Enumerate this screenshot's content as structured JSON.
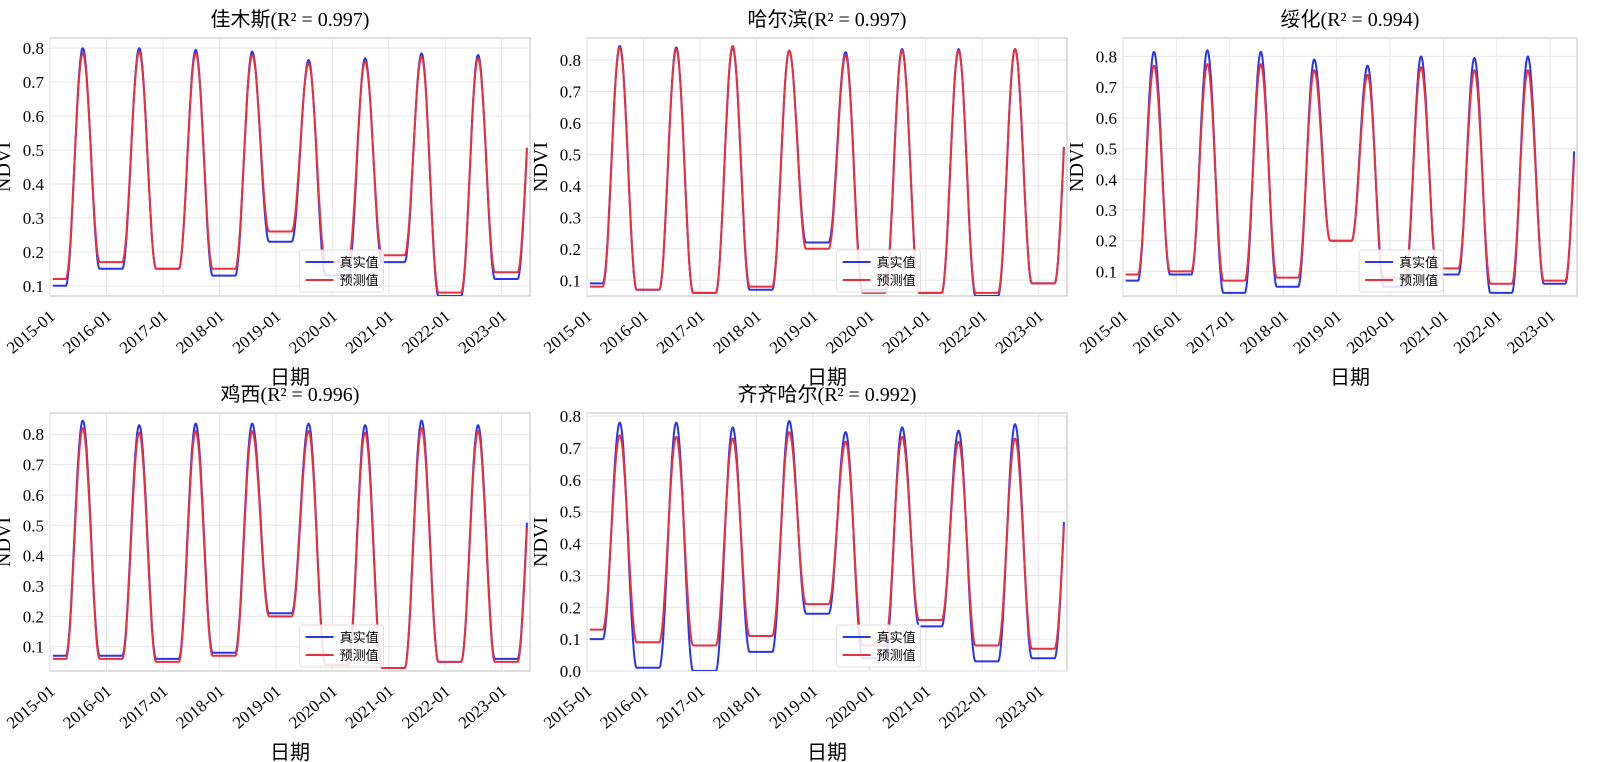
{
  "colors": {
    "true": "#2b35e8",
    "pred": "#e8303f",
    "grid": "#e6e6e6",
    "frame": "#c8c8c8"
  },
  "x_tick_labels": [
    "2015-01",
    "2016-01",
    "2017-01",
    "2018-01",
    "2019-01",
    "2020-01",
    "2021-01",
    "2022-01",
    "2023-01"
  ],
  "chart_data": [
    {
      "type": "line",
      "title": "佳木斯(R² = 0.997)",
      "xlabel": "日期",
      "ylabel": "NDVI",
      "xlim": [
        2015.0,
        2023.5
      ],
      "ylim": [
        0.07,
        0.83
      ],
      "yticks": [
        0.1,
        0.2,
        0.3,
        0.4,
        0.5,
        0.6,
        0.7,
        0.8
      ],
      "legend_position": "lower-right",
      "peaks_true": [
        0.8,
        0.8,
        0.795,
        0.79,
        0.765,
        0.77,
        0.785,
        0.78
      ],
      "troughs_true": [
        0.1,
        0.15,
        0.15,
        0.13,
        0.23,
        0.13,
        0.17,
        0.07,
        0.12
      ],
      "peaks_pred": [
        0.785,
        0.79,
        0.785,
        0.78,
        0.755,
        0.76,
        0.775,
        0.77
      ],
      "troughs_pred": [
        0.12,
        0.17,
        0.15,
        0.15,
        0.26,
        0.17,
        0.19,
        0.08,
        0.14
      ],
      "series": [
        {
          "name": "真实值"
        },
        {
          "name": "预测值"
        }
      ]
    },
    {
      "type": "line",
      "title": "哈尔滨(R² = 0.997)",
      "xlabel": "日期",
      "ylabel": "NDVI",
      "xlim": [
        2015.0,
        2023.5
      ],
      "ylim": [
        0.05,
        0.87
      ],
      "yticks": [
        0.1,
        0.2,
        0.3,
        0.4,
        0.5,
        0.6,
        0.7,
        0.8
      ],
      "legend_position": "lower-right",
      "peaks_true": [
        0.845,
        0.84,
        0.84,
        0.83,
        0.825,
        0.835,
        0.835,
        0.835
      ],
      "troughs_true": [
        0.09,
        0.07,
        0.06,
        0.07,
        0.22,
        0.07,
        0.06,
        0.05,
        0.09
      ],
      "peaks_pred": [
        0.84,
        0.835,
        0.845,
        0.83,
        0.815,
        0.83,
        0.83,
        0.835
      ],
      "troughs_pred": [
        0.08,
        0.07,
        0.06,
        0.08,
        0.2,
        0.06,
        0.06,
        0.06,
        0.09
      ],
      "series": [
        {
          "name": "真实值"
        },
        {
          "name": "预测值"
        }
      ]
    },
    {
      "type": "line",
      "title": "绥化(R² = 0.994)",
      "xlabel": "日期",
      "ylabel": "NDVI",
      "xlim": [
        2015.0,
        2023.5
      ],
      "ylim": [
        0.02,
        0.86
      ],
      "yticks": [
        0.1,
        0.2,
        0.3,
        0.4,
        0.5,
        0.6,
        0.7,
        0.8
      ],
      "legend_position": "lower-right",
      "peaks_true": [
        0.815,
        0.82,
        0.815,
        0.79,
        0.77,
        0.8,
        0.795,
        0.8
      ],
      "troughs_true": [
        0.07,
        0.09,
        0.03,
        0.05,
        0.2,
        0.05,
        0.09,
        0.03,
        0.06
      ],
      "peaks_pred": [
        0.77,
        0.775,
        0.775,
        0.755,
        0.74,
        0.765,
        0.755,
        0.755
      ],
      "troughs_pred": [
        0.09,
        0.1,
        0.07,
        0.08,
        0.2,
        0.08,
        0.11,
        0.06,
        0.07
      ],
      "series": [
        {
          "name": "真实值"
        },
        {
          "name": "预测值"
        }
      ]
    },
    {
      "type": "line",
      "title": "鸡西(R² = 0.996)",
      "xlabel": "日期",
      "ylabel": "NDVI",
      "xlim": [
        2015.0,
        2023.5
      ],
      "ylim": [
        0.02,
        0.87
      ],
      "yticks": [
        0.1,
        0.2,
        0.3,
        0.4,
        0.5,
        0.6,
        0.7,
        0.8
      ],
      "legend_position": "lower-right",
      "peaks_true": [
        0.845,
        0.83,
        0.835,
        0.835,
        0.835,
        0.83,
        0.845,
        0.83
      ],
      "troughs_true": [
        0.07,
        0.07,
        0.06,
        0.08,
        0.21,
        0.04,
        0.03,
        0.05,
        0.06
      ],
      "peaks_pred": [
        0.82,
        0.805,
        0.81,
        0.81,
        0.81,
        0.805,
        0.82,
        0.81
      ],
      "troughs_pred": [
        0.06,
        0.06,
        0.05,
        0.07,
        0.2,
        0.04,
        0.03,
        0.05,
        0.05
      ],
      "series": [
        {
          "name": "真实值"
        },
        {
          "name": "预测值"
        }
      ]
    },
    {
      "type": "line",
      "title": "齐齐哈尔(R² = 0.992)",
      "xlabel": "日期",
      "ylabel": "NDVI",
      "xlim": [
        2015.0,
        2023.5
      ],
      "ylim": [
        0.0,
        0.81
      ],
      "yticks": [
        0.0,
        0.1,
        0.2,
        0.3,
        0.4,
        0.5,
        0.6,
        0.7,
        0.8
      ],
      "legend_position": "lower-right",
      "peaks_true": [
        0.78,
        0.78,
        0.765,
        0.785,
        0.75,
        0.765,
        0.755,
        0.775
      ],
      "troughs_true": [
        0.1,
        0.01,
        0.0,
        0.06,
        0.18,
        0.04,
        0.14,
        0.03,
        0.04
      ],
      "peaks_pred": [
        0.74,
        0.735,
        0.73,
        0.75,
        0.72,
        0.735,
        0.72,
        0.73
      ],
      "troughs_pred": [
        0.13,
        0.09,
        0.08,
        0.11,
        0.21,
        0.08,
        0.16,
        0.08,
        0.07
      ],
      "series": [
        {
          "name": "真实值"
        },
        {
          "name": "预测值"
        }
      ]
    }
  ]
}
